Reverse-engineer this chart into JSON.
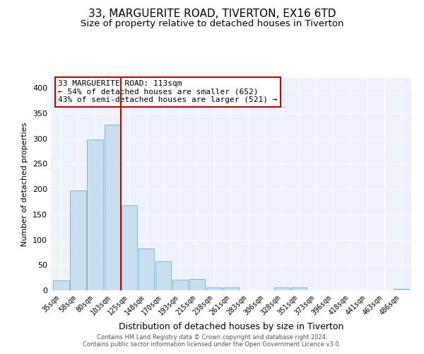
{
  "title": "33, MARGUERITE ROAD, TIVERTON, EX16 6TD",
  "subtitle": "Size of property relative to detached houses in Tiverton",
  "xlabel": "Distribution of detached houses by size in Tiverton",
  "ylabel": "Number of detached properties",
  "categories": [
    "35sqm",
    "58sqm",
    "80sqm",
    "103sqm",
    "125sqm",
    "148sqm",
    "170sqm",
    "193sqm",
    "215sqm",
    "238sqm",
    "261sqm",
    "283sqm",
    "306sqm",
    "328sqm",
    "351sqm",
    "373sqm",
    "396sqm",
    "418sqm",
    "441sqm",
    "463sqm",
    "486sqm"
  ],
  "values": [
    20,
    197,
    298,
    328,
    168,
    82,
    57,
    21,
    23,
    5,
    6,
    0,
    0,
    5,
    5,
    0,
    0,
    0,
    0,
    0,
    3
  ],
  "bar_color": "#c8dff0",
  "bar_edge_color": "#8ab4cc",
  "vline_color": "#cc0000",
  "vline_x_idx": 3.5,
  "annotation_text": "33 MARGUERITE ROAD: 113sqm\n← 54% of detached houses are smaller (652)\n43% of semi-detached houses are larger (521) →",
  "annotation_box_color": "white",
  "annotation_box_edge": "#cc0000",
  "ylim": [
    0,
    420
  ],
  "yticks": [
    0,
    50,
    100,
    150,
    200,
    250,
    300,
    350,
    400
  ],
  "footer_line1": "Contains HM Land Registry data © Crown copyright and database right 2024.",
  "footer_line2": "Contains public sector information licensed under the Open Government Licence v3.0.",
  "bg_color": "#eef2fa",
  "title_fontsize": 11,
  "subtitle_fontsize": 9.5,
  "grid_color": "#ffffff",
  "tick_fontsize": 7,
  "ylabel_fontsize": 8,
  "xlabel_fontsize": 9
}
